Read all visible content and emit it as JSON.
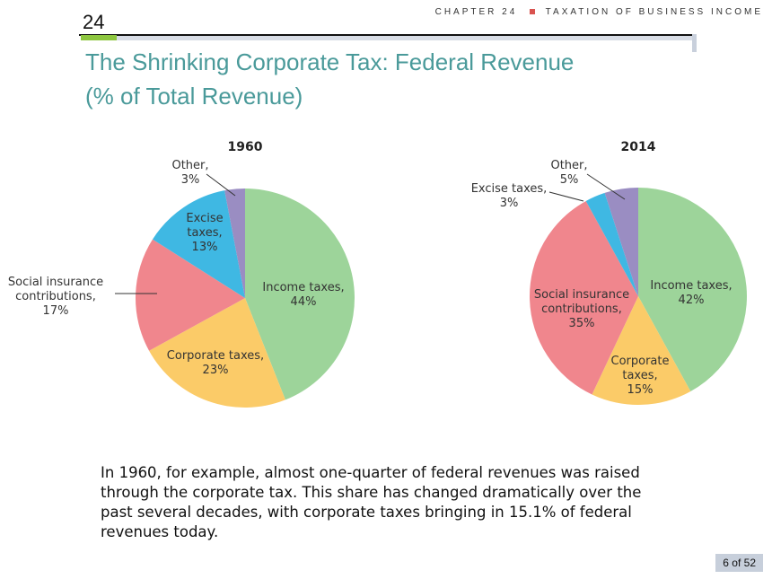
{
  "header": {
    "chapter_label": "CHAPTER 24",
    "chapter_title": "TAXATION OF BUSINESS INCOME",
    "chapter_number": "24",
    "bullet_color": "#d9534f",
    "accent_color": "#8dc63f"
  },
  "title": {
    "line1": "The Shrinking Corporate Tax: Federal Revenue",
    "line2": "(% of Total Revenue)",
    "color": "#4a9a9a"
  },
  "chart_data": [
    {
      "type": "pie",
      "title": "1960",
      "slices": [
        {
          "label": [
            "Income taxes,",
            "44%"
          ],
          "value": 44,
          "color": "#9dd49a"
        },
        {
          "label": [
            "Corporate taxes,",
            "23%"
          ],
          "value": 23,
          "color": "#fbcb68"
        },
        {
          "label": [
            "Social insurance",
            "contributions,",
            "17%"
          ],
          "value": 17,
          "color": "#f0868d"
        },
        {
          "label": [
            "Excise",
            "taxes,",
            "13%"
          ],
          "value": 13,
          "color": "#3fb8e3"
        },
        {
          "label": [
            "Other,",
            "3%"
          ],
          "value": 3,
          "color": "#9a8dc2"
        }
      ]
    },
    {
      "type": "pie",
      "title": "2014",
      "slices": [
        {
          "label": [
            "Income taxes,",
            "42%"
          ],
          "value": 42,
          "color": "#9dd49a"
        },
        {
          "label": [
            "Corporate",
            "taxes,",
            "15%"
          ],
          "value": 15,
          "color": "#fbcb68"
        },
        {
          "label": [
            "Social insurance",
            "contributions,",
            "35%"
          ],
          "value": 35,
          "color": "#f0868d"
        },
        {
          "label": [
            "Excise taxes,",
            "3%"
          ],
          "value": 3,
          "color": "#3fb8e3"
        },
        {
          "label": [
            "Other,",
            "5%"
          ],
          "value": 5,
          "color": "#9a8dc2"
        }
      ]
    }
  ],
  "caption": "In 1960, for example, almost one-quarter of federal revenues was raised through the corporate tax. This share has changed dramatically over the past several decades, with corporate taxes bringing in 15.1% of federal revenues today.",
  "page": "6 of 52"
}
